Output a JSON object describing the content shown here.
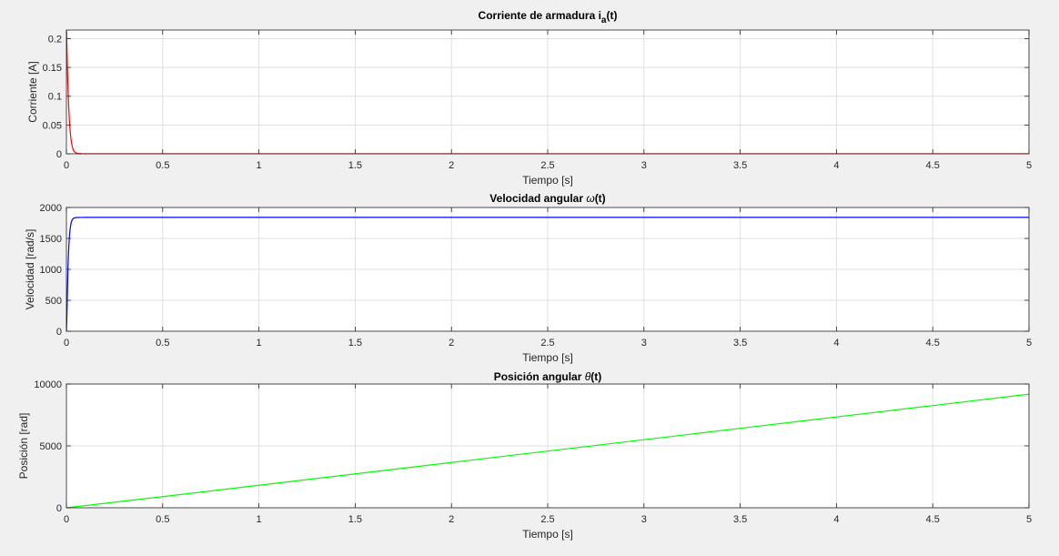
{
  "chart_data": [
    {
      "type": "line",
      "title": "Corriente de armadura i",
      "title_sub": "a",
      "title_suffix": "(t)",
      "xlabel": "Tiempo [s]",
      "ylabel": "Corriente [A]",
      "xlim": [
        0,
        5
      ],
      "ylim": [
        0,
        0.215
      ],
      "xticks": [
        0,
        0.5,
        1,
        1.5,
        2,
        2.5,
        3,
        3.5,
        4,
        4.5,
        5
      ],
      "xtick_labels": [
        "0",
        "0.5",
        "1",
        "1.5",
        "2",
        "2.5",
        "3",
        "3.5",
        "4",
        "4.5",
        "5"
      ],
      "yticks": [
        0,
        0.05,
        0.1,
        0.15,
        0.2
      ],
      "ytick_labels": [
        "0",
        "0.05",
        "0.1",
        "0.15",
        "0.2"
      ],
      "grid": true,
      "series": [
        {
          "color": "#ff0000",
          "x": [
            0,
            0.001,
            0.003,
            0.005,
            0.008,
            0.012,
            0.016,
            0.02,
            0.025,
            0.03,
            0.035,
            0.04,
            0.05,
            0.06,
            0.08,
            0.1,
            0.2,
            0.5,
            1,
            2,
            3,
            4,
            5
          ],
          "y": [
            0.215,
            0.21,
            0.18,
            0.15,
            0.115,
            0.08,
            0.055,
            0.037,
            0.022,
            0.013,
            0.007,
            0.004,
            0.0015,
            0.0006,
            0.0002,
            0.0001,
            0.0001,
            0.0001,
            0.0001,
            0.0001,
            0.0001,
            0.0001,
            0.0001
          ]
        }
      ]
    },
    {
      "type": "line",
      "title": "Velocidad angular ",
      "title_symbol": "ω",
      "title_suffix": "(t)",
      "xlabel": "Tiempo [s]",
      "ylabel": "Velocidad [rad/s]",
      "xlim": [
        0,
        5
      ],
      "ylim": [
        0,
        2000
      ],
      "xticks": [
        0,
        0.5,
        1,
        1.5,
        2,
        2.5,
        3,
        3.5,
        4,
        4.5,
        5
      ],
      "xtick_labels": [
        "0",
        "0.5",
        "1",
        "1.5",
        "2",
        "2.5",
        "3",
        "3.5",
        "4",
        "4.5",
        "5"
      ],
      "yticks": [
        0,
        500,
        1000,
        1500,
        2000
      ],
      "ytick_labels": [
        "0",
        "500",
        "1000",
        "1500",
        "2000"
      ],
      "grid": true,
      "series": [
        {
          "color": "#0000ff",
          "x": [
            0,
            0.002,
            0.004,
            0.006,
            0.008,
            0.01,
            0.013,
            0.016,
            0.02,
            0.025,
            0.03,
            0.035,
            0.04,
            0.05,
            0.06,
            0.08,
            0.1,
            0.5,
            1,
            2,
            3,
            4,
            5
          ],
          "y": [
            0,
            180,
            450,
            750,
            1000,
            1200,
            1400,
            1550,
            1670,
            1760,
            1800,
            1820,
            1830,
            1836,
            1838,
            1839,
            1840,
            1840,
            1840,
            1840,
            1840,
            1840,
            1840
          ]
        }
      ]
    },
    {
      "type": "line",
      "title": "Posición angular ",
      "title_symbol": "θ",
      "title_suffix": "(t)",
      "xlabel": "Tiempo [s]",
      "ylabel": "Posición [rad]",
      "xlim": [
        0,
        5
      ],
      "ylim": [
        0,
        10000
      ],
      "xticks": [
        0,
        0.5,
        1,
        1.5,
        2,
        2.5,
        3,
        3.5,
        4,
        4.5,
        5
      ],
      "xtick_labels": [
        "0",
        "0.5",
        "1",
        "1.5",
        "2",
        "2.5",
        "3",
        "3.5",
        "4",
        "4.5",
        "5"
      ],
      "yticks": [
        0,
        5000,
        10000
      ],
      "ytick_labels": [
        "0",
        "5000",
        "10000"
      ],
      "grid": true,
      "series": [
        {
          "color": "#00ff00",
          "x": [
            0,
            0.5,
            1,
            1.5,
            2,
            2.5,
            3,
            3.5,
            4,
            4.5,
            5
          ],
          "y": [
            0,
            900,
            1820,
            2740,
            3660,
            4580,
            5500,
            6420,
            7340,
            8260,
            9180
          ]
        }
      ]
    }
  ]
}
